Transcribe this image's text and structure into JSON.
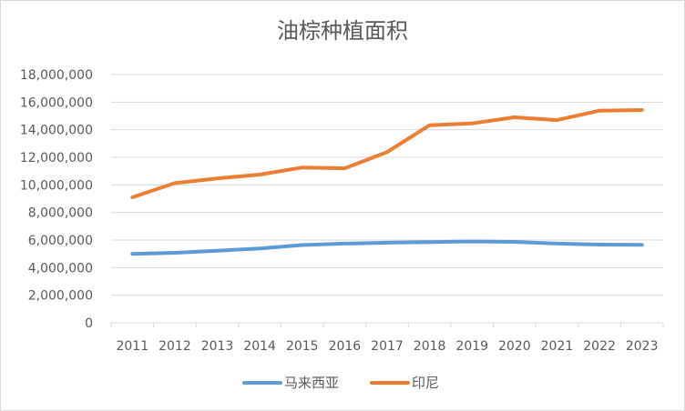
{
  "chart_data": {
    "type": "line",
    "title": "油棕种植面积",
    "categories": [
      "2011",
      "2012",
      "2013",
      "2014",
      "2015",
      "2016",
      "2017",
      "2018",
      "2019",
      "2020",
      "2021",
      "2022",
      "2023"
    ],
    "y_ticks": [
      "0",
      "2,000,000",
      "4,000,000",
      "6,000,000",
      "8,000,000",
      "10,000,000",
      "12,000,000",
      "14,000,000",
      "16,000,000",
      "18,000,000"
    ],
    "ylim": [
      0,
      18000000
    ],
    "grid": true,
    "legend_position": "bottom",
    "series": [
      {
        "name": "马来西亚",
        "color": "#5b9bd5",
        "values": [
          5000000,
          5080000,
          5230000,
          5390000,
          5640000,
          5740000,
          5810000,
          5850000,
          5900000,
          5870000,
          5740000,
          5670000,
          5650000
        ]
      },
      {
        "name": "印尼",
        "color": "#ed7d31",
        "values": [
          9100000,
          10130000,
          10470000,
          10750000,
          11260000,
          11200000,
          12380000,
          14330000,
          14460000,
          14900000,
          14700000,
          15380000,
          15430000
        ]
      }
    ]
  }
}
